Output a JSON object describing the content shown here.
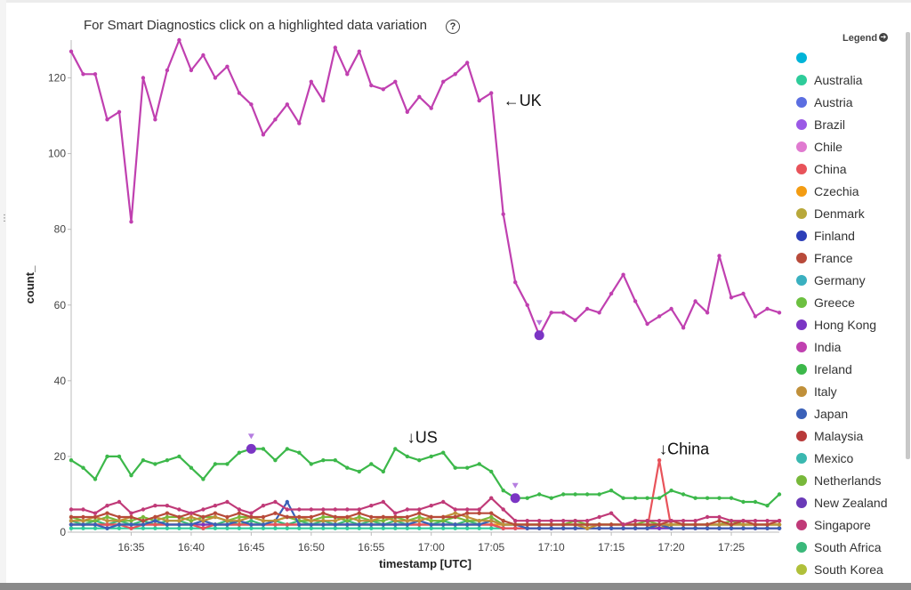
{
  "header": {
    "text": "For Smart Diagnostics click on a highlighted data variation",
    "help_glyph": "?",
    "help_icon": "question-circle-icon"
  },
  "left_mark": "⋮",
  "legend": {
    "title": "Legend",
    "toggle_icon": "arrow-circle-right-icon",
    "toggle_glyph": "➔",
    "items": [
      {
        "label": "",
        "color": "#00b4d8"
      },
      {
        "label": "Australia",
        "color": "#2ecc9a"
      },
      {
        "label": "Austria",
        "color": "#5b6ee1"
      },
      {
        "label": "Brazil",
        "color": "#9b59e6"
      },
      {
        "label": "Chile",
        "color": "#e07ad0"
      },
      {
        "label": "China",
        "color": "#e8535a"
      },
      {
        "label": "Czechia",
        "color": "#f39c12"
      },
      {
        "label": "Denmark",
        "color": "#b8a83a"
      },
      {
        "label": "Finland",
        "color": "#2c3eb8"
      },
      {
        "label": "France",
        "color": "#b84a3a"
      },
      {
        "label": "Germany",
        "color": "#3ab0c0"
      },
      {
        "label": "Greece",
        "color": "#6cc040"
      },
      {
        "label": "Hong Kong",
        "color": "#7b35c4"
      },
      {
        "label": "India",
        "color": "#c040b0"
      },
      {
        "label": "Ireland",
        "color": "#3cb84a"
      },
      {
        "label": "Italy",
        "color": "#c0903a"
      },
      {
        "label": "Japan",
        "color": "#3a60b8"
      },
      {
        "label": "Malaysia",
        "color": "#b83a3a"
      },
      {
        "label": "Mexico",
        "color": "#3ab8b0"
      },
      {
        "label": "Netherlands",
        "color": "#78b83a"
      },
      {
        "label": "New Zealand",
        "color": "#6a3ab8"
      },
      {
        "label": "Singapore",
        "color": "#c03a78"
      },
      {
        "label": "South Africa",
        "color": "#3ab87a"
      },
      {
        "label": "South Korea",
        "color": "#b0c03a"
      }
    ]
  },
  "annotations": [
    {
      "text": "←UK",
      "x": "17:06",
      "y": 114
    },
    {
      "text": "↓US",
      "x": "16:58",
      "y": 25
    },
    {
      "text": "↓China",
      "x": "17:19",
      "y": 22
    }
  ],
  "chart_data": {
    "type": "line",
    "xlabel": "timestamp [UTC]",
    "ylabel": "count_",
    "x_ticks": [
      "16:35",
      "16:40",
      "16:45",
      "16:50",
      "16:55",
      "17:00",
      "17:05",
      "17:10",
      "17:15",
      "17:20",
      "17:25"
    ],
    "x_start": "16:30",
    "x_end": "17:29",
    "ylim": [
      0,
      130
    ],
    "y_ticks": [
      0,
      20,
      40,
      60,
      80,
      100,
      120
    ],
    "grid": false,
    "legend_position": "right",
    "series": [
      {
        "name": "India",
        "color": "#c040b0",
        "values": [
          127,
          121,
          121,
          109,
          111,
          82,
          120,
          109,
          122,
          130,
          122,
          126,
          120,
          123,
          116,
          113,
          105,
          109,
          113,
          108,
          119,
          114,
          128,
          121,
          127,
          118,
          117,
          119,
          111,
          115,
          112,
          119,
          121,
          124,
          114,
          116,
          84,
          66,
          60,
          52,
          58,
          58,
          56,
          59,
          58,
          63,
          68,
          61,
          55,
          57,
          59,
          54,
          61,
          58,
          73,
          62,
          63,
          57,
          59,
          58
        ]
      },
      {
        "name": "Ireland",
        "color": "#3cb84a",
        "values": [
          19,
          17,
          14,
          20,
          20,
          15,
          19,
          18,
          19,
          20,
          17,
          14,
          18,
          18,
          21,
          22,
          22,
          19,
          22,
          21,
          18,
          19,
          19,
          17,
          16,
          18,
          16,
          22,
          20,
          19,
          20,
          21,
          17,
          17,
          18,
          16,
          11,
          9,
          9,
          10,
          9,
          10,
          10,
          10,
          10,
          11,
          9,
          9,
          9,
          9,
          11,
          10,
          9,
          9,
          9,
          9,
          8,
          8,
          7,
          10
        ]
      },
      {
        "name": "Singapore",
        "color": "#c03a78",
        "values": [
          6,
          6,
          5,
          7,
          8,
          5,
          6,
          7,
          7,
          6,
          5,
          6,
          7,
          8,
          6,
          5,
          7,
          8,
          6,
          6,
          6,
          6,
          6,
          6,
          6,
          7,
          8,
          5,
          6,
          6,
          7,
          8,
          6,
          6,
          6,
          9,
          6,
          3,
          3,
          3,
          3,
          3,
          3,
          3,
          4,
          5,
          2,
          3,
          3,
          3,
          3,
          3,
          3,
          4,
          4,
          3,
          3,
          3,
          3,
          3
        ]
      },
      {
        "name": "France",
        "color": "#b84a3a",
        "values": [
          4,
          4,
          4,
          5,
          4,
          4,
          3,
          4,
          5,
          4,
          5,
          4,
          5,
          4,
          5,
          4,
          4,
          5,
          4,
          4,
          4,
          5,
          4,
          4,
          5,
          4,
          4,
          4,
          4,
          5,
          4,
          4,
          4,
          5,
          5,
          5,
          3,
          2,
          2,
          2,
          2,
          2,
          2,
          2,
          2,
          2,
          2,
          2,
          2,
          2,
          3,
          2,
          2,
          2,
          3,
          2,
          3,
          2,
          2,
          3
        ]
      },
      {
        "name": "Italy",
        "color": "#c0903a",
        "values": [
          3,
          3,
          4,
          3,
          3,
          4,
          3,
          4,
          3,
          3,
          4,
          3,
          4,
          3,
          3,
          4,
          3,
          3,
          4,
          4,
          3,
          3,
          3,
          4,
          3,
          3,
          4,
          3,
          3,
          3,
          4,
          4,
          5,
          4,
          3,
          3,
          2,
          2,
          2,
          2,
          2,
          2,
          2,
          1,
          2,
          2,
          2,
          2,
          2,
          2,
          2,
          2,
          2,
          2,
          2,
          2,
          2,
          2,
          2,
          2
        ]
      },
      {
        "name": "Japan",
        "color": "#3a60b8",
        "values": [
          2,
          2,
          2,
          1,
          2,
          2,
          2,
          3,
          2,
          2,
          2,
          3,
          2,
          2,
          3,
          2,
          2,
          3,
          8,
          2,
          2,
          2,
          2,
          2,
          2,
          2,
          2,
          2,
          2,
          3,
          2,
          2,
          2,
          2,
          2,
          3,
          2,
          2,
          1,
          1,
          1,
          1,
          1,
          1,
          1,
          1,
          1,
          1,
          1,
          2,
          1,
          1,
          1,
          1,
          1,
          1,
          1,
          1,
          1,
          1
        ]
      },
      {
        "name": "Netherlands",
        "color": "#78b83a",
        "values": [
          4,
          3,
          3,
          4,
          3,
          3,
          4,
          3,
          4,
          4,
          3,
          4,
          4,
          3,
          4,
          4,
          3,
          3,
          4,
          3,
          3,
          4,
          4,
          3,
          4,
          3,
          3,
          4,
          3,
          4,
          3,
          3,
          4,
          3,
          3,
          4,
          2,
          2,
          2,
          2,
          2,
          2,
          3,
          2,
          2,
          2,
          2,
          2,
          3,
          2,
          2,
          2,
          2,
          2,
          2,
          3,
          2,
          2,
          2,
          2
        ]
      },
      {
        "name": "China",
        "color": "#e8535a",
        "values": [
          2,
          2,
          2,
          2,
          2,
          1,
          2,
          2,
          2,
          2,
          2,
          1,
          2,
          2,
          2,
          2,
          2,
          2,
          2,
          2,
          2,
          2,
          2,
          2,
          2,
          2,
          2,
          2,
          2,
          2,
          2,
          2,
          2,
          2,
          2,
          2,
          1,
          1,
          1,
          1,
          1,
          1,
          1,
          1,
          1,
          1,
          1,
          1,
          1,
          19,
          1,
          1,
          1,
          1,
          1,
          1,
          1,
          1,
          1,
          1
        ]
      },
      {
        "name": "South Africa",
        "color": "#3ab87a",
        "values": [
          3,
          2,
          3,
          2,
          3,
          2,
          3,
          2,
          3,
          3,
          2,
          3,
          2,
          3,
          2,
          3,
          2,
          3,
          2,
          3,
          2,
          3,
          2,
          3,
          2,
          3,
          2,
          3,
          2,
          3,
          2,
          3,
          2,
          3,
          2,
          3,
          2,
          2,
          2,
          2,
          2,
          2,
          2,
          2,
          2,
          2,
          2,
          2,
          2,
          2,
          2,
          2,
          2,
          2,
          2,
          2,
          2,
          2,
          2,
          2
        ]
      },
      {
        "name": "Hong Kong",
        "color": "#7b35c4",
        "values": [
          2,
          2,
          2,
          2,
          2,
          2,
          2,
          2,
          2,
          2,
          2,
          2,
          2,
          2,
          2,
          2,
          2,
          2,
          2,
          2,
          2,
          2,
          2,
          2,
          2,
          2,
          2,
          2,
          2,
          2,
          2,
          2,
          2,
          2,
          2,
          2,
          1,
          1,
          1,
          1,
          1,
          1,
          1,
          1,
          1,
          1,
          1,
          1,
          1,
          1,
          1,
          1,
          1,
          1,
          1,
          1,
          1,
          1,
          1,
          1
        ]
      },
      {
        "name": "Australia",
        "color": "#2ecc9a",
        "values": [
          1,
          1,
          1,
          1,
          1,
          1,
          1,
          1,
          1,
          1,
          1,
          1,
          1,
          1,
          1,
          1,
          1,
          1,
          1,
          1,
          1,
          1,
          1,
          1,
          1,
          1,
          1,
          1,
          1,
          1,
          1,
          1,
          1,
          1,
          1,
          1,
          1,
          1,
          1,
          1,
          1,
          1,
          1,
          1,
          1,
          1,
          1,
          1,
          1,
          1,
          1,
          1,
          1,
          1,
          1,
          1,
          1,
          1,
          1,
          1
        ]
      },
      {
        "name": "Czechia",
        "color": "#f39c12",
        "values": [
          2,
          2,
          2,
          2,
          2,
          2,
          2,
          2,
          2,
          2,
          2,
          2,
          2,
          2,
          2,
          2,
          2,
          2,
          2,
          2,
          2,
          2,
          2,
          2,
          2,
          2,
          2,
          2,
          2,
          2,
          2,
          2,
          2,
          2,
          2,
          2,
          2,
          2,
          2,
          2,
          2,
          2,
          2,
          2,
          2,
          2,
          2,
          2,
          2,
          1,
          2,
          2,
          2,
          2,
          2,
          2,
          2,
          2,
          2,
          2
        ]
      }
    ],
    "highlighted_points": [
      {
        "series": "India",
        "x": "17:09",
        "y": 52
      },
      {
        "series": "Ireland",
        "x": "16:45",
        "y": 22
      },
      {
        "series": "Ireland",
        "x": "17:07",
        "y": 9
      }
    ]
  }
}
